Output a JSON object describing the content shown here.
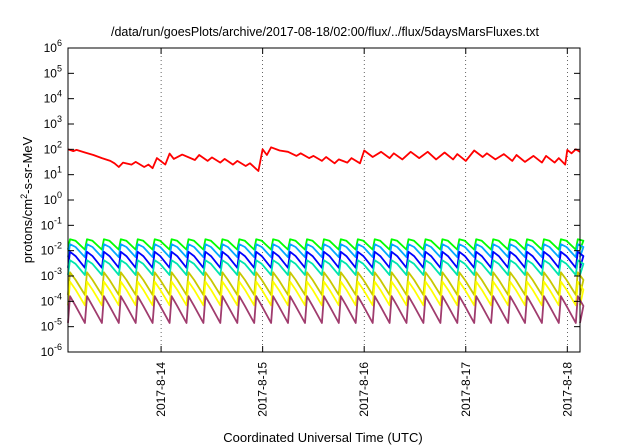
{
  "chart_data": {
    "type": "line",
    "title": "/data/run/goesPlots/archive/2017-08-18/02:00/flux/../flux/5daysMarsFluxes.txt",
    "xlabel": "Coordinated Universal Time (UTC)",
    "ylabel": {
      "prefix": "protons/cm",
      "sup": "2",
      "suffix": "-s-sr-MeV"
    },
    "x_range": [
      "2017-08-13T02:00",
      "2017-08-18T03:00"
    ],
    "y_scale": "log",
    "ylim": [
      1e-06,
      1000000.0
    ],
    "y_ticks": [
      {
        "value": 1e-06,
        "base": "10",
        "exp": "-6"
      },
      {
        "value": 1e-05,
        "base": "10",
        "exp": "-5"
      },
      {
        "value": 0.0001,
        "base": "10",
        "exp": "-4"
      },
      {
        "value": 0.001,
        "base": "10",
        "exp": "-3"
      },
      {
        "value": 0.01,
        "base": "10",
        "exp": "-2"
      },
      {
        "value": 0.1,
        "base": "10",
        "exp": "-1"
      },
      {
        "value": 1.0,
        "base": "10",
        "exp": "0"
      },
      {
        "value": 10.0,
        "base": "10",
        "exp": "1"
      },
      {
        "value": 100.0,
        "base": "10",
        "exp": "2"
      },
      {
        "value": 1000.0,
        "base": "10",
        "exp": "3"
      },
      {
        "value": 10000.0,
        "base": "10",
        "exp": "4"
      },
      {
        "value": 100000.0,
        "base": "10",
        "exp": "5"
      },
      {
        "value": 1000000.0,
        "base": "10",
        "exp": "6"
      }
    ],
    "x_ticks": [
      {
        "value": "2017-08-14T00:00",
        "label": "2017-8-14"
      },
      {
        "value": "2017-08-15T00:00",
        "label": "2017-8-15"
      },
      {
        "value": "2017-08-16T00:00",
        "label": "2017-8-16"
      },
      {
        "value": "2017-08-17T00:00",
        "label": "2017-8-17"
      },
      {
        "value": "2017-08-18T00:00",
        "label": "2017-8-18"
      }
    ],
    "grid": true,
    "legend": "none",
    "series": [
      {
        "color": "#ff0000",
        "values": [
          [
            "2017-08-13T02:00",
            100
          ],
          [
            "2017-08-13T03:15",
            85
          ],
          [
            "2017-08-13T04:00",
            95
          ],
          [
            "2017-08-13T06:00",
            75
          ],
          [
            "2017-08-13T08:00",
            60
          ],
          [
            "2017-08-13T10:00",
            45
          ],
          [
            "2017-08-13T12:00",
            35
          ],
          [
            "2017-08-13T13:00",
            28
          ],
          [
            "2017-08-13T14:00",
            20
          ],
          [
            "2017-08-13T15:00",
            30
          ],
          [
            "2017-08-13T17:00",
            25
          ],
          [
            "2017-08-13T18:00",
            32
          ],
          [
            "2017-08-13T20:00",
            20
          ],
          [
            "2017-08-13T21:00",
            25
          ],
          [
            "2017-08-13T22:00",
            18
          ],
          [
            "2017-08-13T23:00",
            45
          ],
          [
            "2017-08-14T01:00",
            25
          ],
          [
            "2017-08-14T02:00",
            68
          ],
          [
            "2017-08-14T03:00",
            42
          ],
          [
            "2017-08-14T05:00",
            62
          ],
          [
            "2017-08-14T08:00",
            38
          ],
          [
            "2017-08-14T09:00",
            60
          ],
          [
            "2017-08-14T11:00",
            35
          ],
          [
            "2017-08-14T12:00",
            48
          ],
          [
            "2017-08-14T14:00",
            30
          ],
          [
            "2017-08-14T15:00",
            42
          ],
          [
            "2017-08-14T17:00",
            25
          ],
          [
            "2017-08-14T18:00",
            35
          ],
          [
            "2017-08-14T20:00",
            22
          ],
          [
            "2017-08-14T21:00",
            28
          ],
          [
            "2017-08-14T23:00",
            14
          ],
          [
            "2017-08-15T00:00",
            100
          ],
          [
            "2017-08-15T01:00",
            60
          ],
          [
            "2017-08-15T02:00",
            120
          ],
          [
            "2017-08-15T04:00",
            90
          ],
          [
            "2017-08-15T06:00",
            80
          ],
          [
            "2017-08-15T08:00",
            55
          ],
          [
            "2017-08-15T09:00",
            70
          ],
          [
            "2017-08-15T11:00",
            45
          ],
          [
            "2017-08-15T12:00",
            55
          ],
          [
            "2017-08-15T14:00",
            35
          ],
          [
            "2017-08-15T15:00",
            50
          ],
          [
            "2017-08-15T17:00",
            28
          ],
          [
            "2017-08-15T18:00",
            40
          ],
          [
            "2017-08-15T20:00",
            30
          ],
          [
            "2017-08-15T21:00",
            45
          ],
          [
            "2017-08-15T23:00",
            28
          ],
          [
            "2017-08-16T00:00",
            90
          ],
          [
            "2017-08-16T02:00",
            50
          ],
          [
            "2017-08-16T04:00",
            80
          ],
          [
            "2017-08-16T06:00",
            45
          ],
          [
            "2017-08-16T07:00",
            70
          ],
          [
            "2017-08-16T09:00",
            40
          ],
          [
            "2017-08-16T11:00",
            80
          ],
          [
            "2017-08-16T13:00",
            45
          ],
          [
            "2017-08-16T15:00",
            80
          ],
          [
            "2017-08-16T17:00",
            40
          ],
          [
            "2017-08-16T19:00",
            75
          ],
          [
            "2017-08-16T21:00",
            40
          ],
          [
            "2017-08-16T22:00",
            65
          ],
          [
            "2017-08-17T00:00",
            35
          ],
          [
            "2017-08-17T02:00",
            90
          ],
          [
            "2017-08-17T04:00",
            50
          ],
          [
            "2017-08-17T05:00",
            70
          ],
          [
            "2017-08-17T07:00",
            40
          ],
          [
            "2017-08-17T09:00",
            65
          ],
          [
            "2017-08-17T11:00",
            35
          ],
          [
            "2017-08-17T12:00",
            60
          ],
          [
            "2017-08-17T14:00",
            32
          ],
          [
            "2017-08-17T16:00",
            55
          ],
          [
            "2017-08-17T18:00",
            30
          ],
          [
            "2017-08-17T19:00",
            55
          ],
          [
            "2017-08-17T21:00",
            30
          ],
          [
            "2017-08-17T22:00",
            45
          ],
          [
            "2017-08-17T23:30",
            25
          ],
          [
            "2017-08-18T00:00",
            95
          ],
          [
            "2017-08-18T01:00",
            70
          ],
          [
            "2017-08-18T02:00",
            100
          ],
          [
            "2017-08-18T03:00",
            80
          ]
        ]
      },
      {
        "color": "#00ff00",
        "baseline": 0.028,
        "trough": 0.011,
        "period_hours": 4
      },
      {
        "color": "#00a8ff",
        "baseline": 0.018,
        "trough": 0.0055,
        "period_hours": 4
      },
      {
        "color": "#0000ff",
        "baseline": 0.009,
        "trough": 0.0021,
        "period_hours": 4
      },
      {
        "color": "#00e5b0",
        "baseline": 0.0042,
        "trough": 0.0011,
        "period_hours": 4
      },
      {
        "color": "#c8c800",
        "baseline": 0.0014,
        "trough": 0.00018,
        "period_hours": 4
      },
      {
        "color": "#ffff00",
        "baseline": 0.0006,
        "trough": 7e-05,
        "period_hours": 4
      },
      {
        "color": "#a03c6e",
        "baseline": 0.00016,
        "trough": 1.4e-05,
        "period_hours": 4
      }
    ]
  }
}
